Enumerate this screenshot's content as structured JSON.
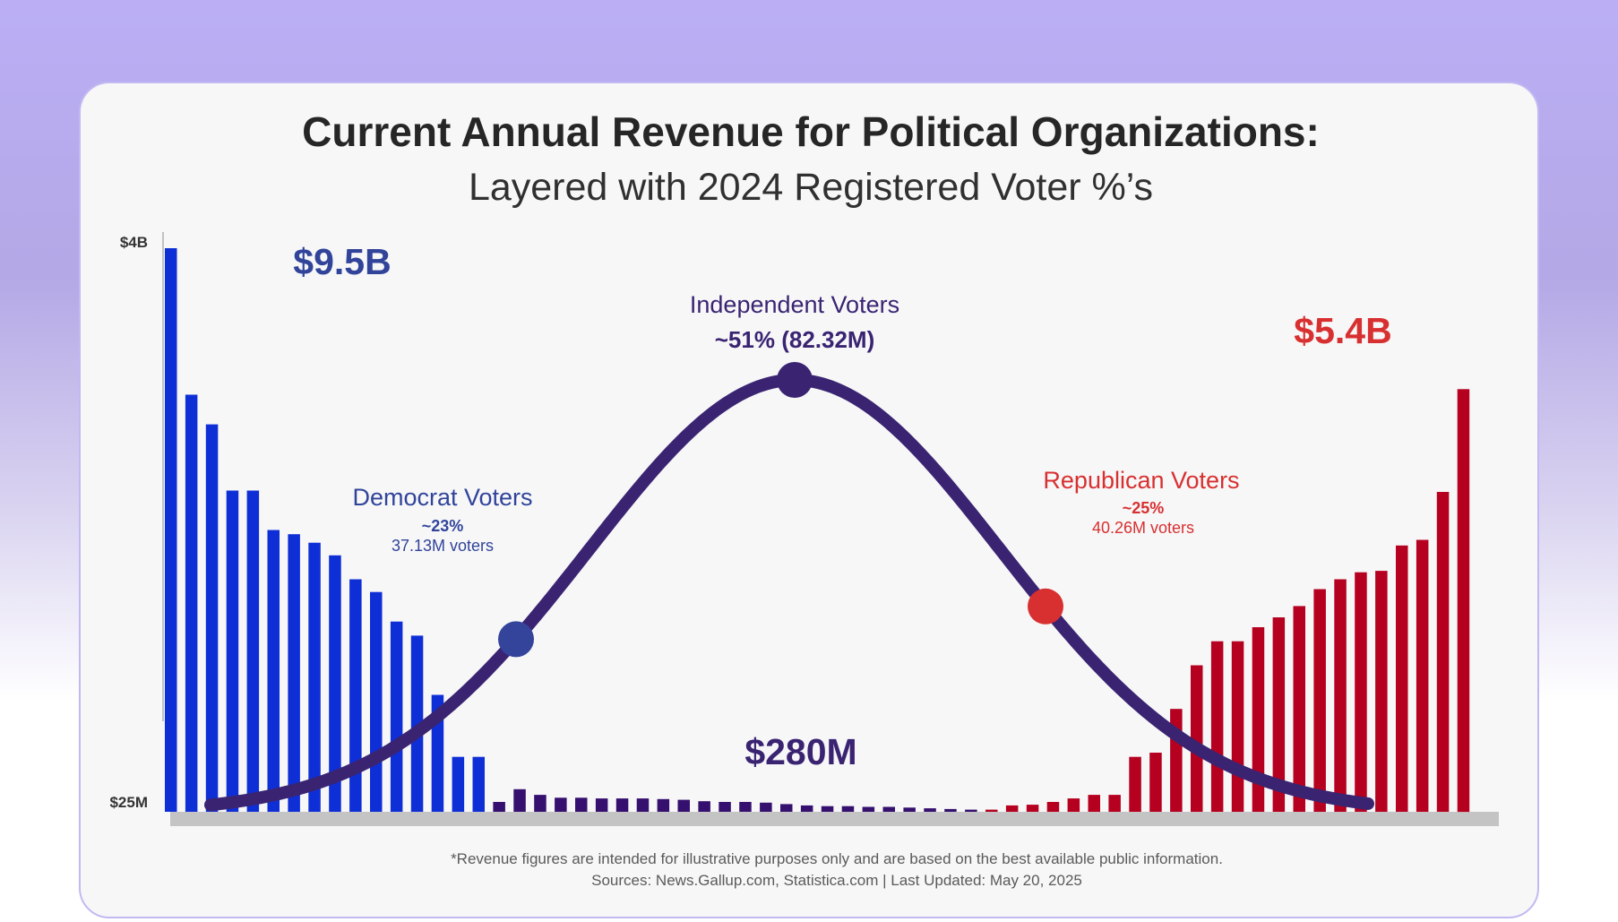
{
  "colors": {
    "democrat": "#0f2fd6",
    "independent": "#35106e",
    "republican": "#b5001f",
    "curve": "#3a2472",
    "dem_text": "#31449a",
    "rep_text": "#d83030",
    "ind_text": "#3a2472",
    "dem_dot": "#33449a",
    "rep_dot": "#d83030",
    "ind_dot": "#3a2472",
    "baseline": "#c4c4c4"
  },
  "chart_data": {
    "type": "bar",
    "title": "Current Annual Revenue for Political Organizations:",
    "subtitle": "Layered with 2024 Registered Voter %’s",
    "ylim": [
      0,
      4000
    ],
    "ytick_labels": [
      "$4B",
      "$25M"
    ],
    "grid": false,
    "series": [
      {
        "group": "democrat",
        "values": [
          4000,
          2960,
          2750,
          2280,
          2280,
          2000,
          1970,
          1910,
          1820,
          1650,
          1560,
          1350,
          1250,
          830,
          390,
          390
        ]
      },
      {
        "group": "independent",
        "values": [
          70,
          160,
          120,
          100,
          100,
          95,
          95,
          95,
          90,
          85,
          75,
          70,
          70,
          65,
          55,
          45,
          40,
          40,
          35,
          35,
          30,
          25,
          20,
          15
        ]
      },
      {
        "group": "republican",
        "values": [
          15,
          45,
          50,
          70,
          95,
          120,
          120,
          390,
          420,
          730,
          1040,
          1210,
          1210,
          1310,
          1380,
          1460,
          1580,
          1650,
          1700,
          1710,
          1890,
          1930,
          2270,
          3000
        ]
      }
    ],
    "curve": {
      "type": "bell",
      "peak_share": 0.51
    },
    "annotations": {
      "democrat_total": "$9.5B",
      "independent_total": "$280M",
      "republican_total": "$5.4B"
    }
  },
  "voters": {
    "democrat": {
      "label": "Democrat Voters",
      "pct": "~23%",
      "count": "37.13M voters"
    },
    "independent": {
      "label": "Independent Voters",
      "pct_count": "~51% (82.32M)"
    },
    "republican": {
      "label": "Republican Voters",
      "pct": "~25%",
      "count": "40.26M voters"
    }
  },
  "footer": {
    "note": "*Revenue figures are intended for illustrative purposes only and are based on the best available public information.",
    "sources": "Sources: News.Gallup.com, Statistica.com | Last Updated: May 20, 2025"
  }
}
